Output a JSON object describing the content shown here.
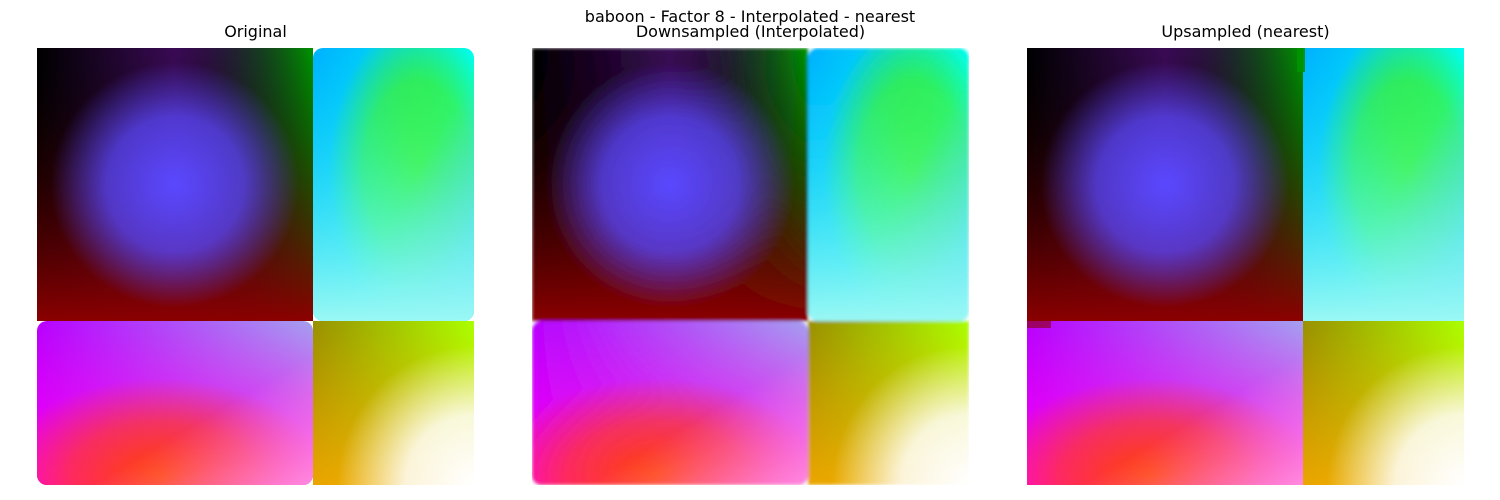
{
  "figure": {
    "title": "baboon - Factor 8 - Interpolated - nearest"
  },
  "panels": [
    {
      "title": "Original",
      "render": "smooth"
    },
    {
      "title": "Downsampled (Interpolated)",
      "render": "soft"
    },
    {
      "title": "Upsampled (nearest)",
      "render": "blocky"
    }
  ],
  "image_colors": {
    "top_left_corner": "#000000",
    "top_left_center": "#5a48ff",
    "top_left_bottom_edge": "#8b0000",
    "top_left_right_edge": "#009400",
    "top_right_corner": "#00fff0",
    "top_right_top_left": "#00b0ff",
    "top_right_center": "#48ee00",
    "top_right_bottom_left": "#8ea8ff",
    "top_right_bottom_right": "#9af8f4",
    "bottom_left_top_left": "#b800ff",
    "bottom_left_top_right": "#a4a0f0",
    "bottom_left_bottom_left": "#ff00f0",
    "bottom_left_center": "#ff4400",
    "bottom_left_bottom_right": "#ff99e0",
    "bottom_right_top_left": "#999000",
    "bottom_right_top_right": "#aaff00",
    "bottom_right_bottom_left": "#ffaa00",
    "bottom_right_bottom_right": "#ffffff"
  }
}
